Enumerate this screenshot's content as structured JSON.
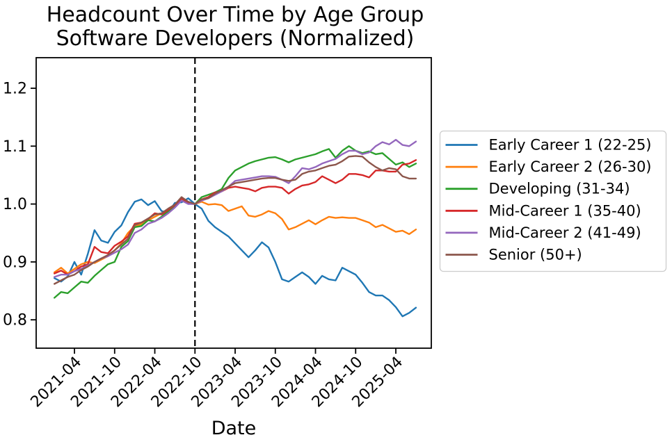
{
  "chart_data": {
    "type": "line",
    "title": "Headcount Over Time by Age Group\nSoftware Developers (Normalized)",
    "title_lines": [
      "Headcount Over Time by Age Group",
      "Software Developers (Normalized)"
    ],
    "xlabel": "Date",
    "ylabel": "",
    "grid": false,
    "legend_position": "right",
    "legend_border_color": "#cccccc",
    "ylim": [
      0.751,
      1.2528
    ],
    "xlim_index": [
      -2.72,
      56.3
    ],
    "y_ticks": [
      0.8,
      0.9,
      1.0,
      1.1,
      1.2
    ],
    "y_tick_labels": [
      "0.8",
      "0.9",
      "1.0",
      "1.1",
      "1.2"
    ],
    "x_tick_indices": [
      3,
      9,
      15,
      21,
      27,
      33,
      39,
      45,
      51
    ],
    "x_tick_labels": [
      "2021-04",
      "2021-10",
      "2022-04",
      "2022-10",
      "2023-04",
      "2023-10",
      "2024-04",
      "2024-10",
      "2025-04"
    ],
    "vline": {
      "date": "2022-10",
      "index": 21,
      "style": "dashed",
      "color": "#000000"
    },
    "normalization_note": "all series = 1.0 at 2022-10",
    "x": [
      "2021-01",
      "2021-02",
      "2021-03",
      "2021-04",
      "2021-05",
      "2021-06",
      "2021-07",
      "2021-08",
      "2021-09",
      "2021-10",
      "2021-11",
      "2021-12",
      "2022-01",
      "2022-02",
      "2022-03",
      "2022-04",
      "2022-05",
      "2022-06",
      "2022-07",
      "2022-08",
      "2022-09",
      "2022-10",
      "2022-11",
      "2022-12",
      "2023-01",
      "2023-02",
      "2023-03",
      "2023-04",
      "2023-05",
      "2023-06",
      "2023-07",
      "2023-08",
      "2023-09",
      "2023-10",
      "2023-11",
      "2023-12",
      "2024-01",
      "2024-02",
      "2024-03",
      "2024-04",
      "2024-05",
      "2024-06",
      "2024-07",
      "2024-08",
      "2024-09",
      "2024-10",
      "2024-11",
      "2024-12",
      "2025-01",
      "2025-02",
      "2025-03",
      "2025-04",
      "2025-05",
      "2025-06",
      "2025-07"
    ],
    "series": [
      {
        "name": "Early Career 1 (22-25)",
        "color": "#1f77b4",
        "values": [
          0.872,
          0.866,
          0.875,
          0.9,
          0.878,
          0.914,
          0.955,
          0.937,
          0.933,
          0.952,
          0.963,
          0.986,
          1.004,
          1.008,
          0.998,
          1.005,
          0.988,
          0.985,
          1.002,
          1.003,
          1.01,
          1.0,
          0.992,
          0.971,
          0.96,
          0.952,
          0.944,
          0.932,
          0.92,
          0.908,
          0.92,
          0.934,
          0.925,
          0.9,
          0.87,
          0.866,
          0.874,
          0.882,
          0.874,
          0.862,
          0.876,
          0.87,
          0.868,
          0.89,
          0.884,
          0.878,
          0.864,
          0.848,
          0.842,
          0.842,
          0.834,
          0.822,
          0.806,
          0.812,
          0.821
        ]
      },
      {
        "name": "Early Career 2 (26-30)",
        "color": "#ff7f0e",
        "values": [
          0.882,
          0.89,
          0.88,
          0.888,
          0.896,
          0.9,
          0.898,
          0.904,
          0.91,
          0.92,
          0.932,
          0.95,
          0.962,
          0.965,
          0.972,
          0.978,
          0.984,
          0.988,
          0.996,
          1.008,
          1.002,
          1.0,
          1.004,
          0.999,
          1.0,
          0.998,
          0.988,
          0.992,
          0.996,
          0.98,
          0.978,
          0.982,
          0.988,
          0.984,
          0.974,
          0.956,
          0.96,
          0.966,
          0.972,
          0.965,
          0.972,
          0.978,
          0.976,
          0.977,
          0.976,
          0.976,
          0.972,
          0.968,
          0.96,
          0.964,
          0.958,
          0.952,
          0.954,
          0.948,
          0.956
        ]
      },
      {
        "name": "Developing (31-34)",
        "color": "#2ca02c",
        "values": [
          0.838,
          0.848,
          0.846,
          0.856,
          0.866,
          0.864,
          0.876,
          0.886,
          0.896,
          0.9,
          0.926,
          0.936,
          0.96,
          0.962,
          0.972,
          0.97,
          0.978,
          0.988,
          0.996,
          1.01,
          1.002,
          1.0,
          1.012,
          1.016,
          1.02,
          1.026,
          1.045,
          1.058,
          1.064,
          1.07,
          1.074,
          1.077,
          1.08,
          1.081,
          1.077,
          1.072,
          1.077,
          1.08,
          1.083,
          1.086,
          1.091,
          1.095,
          1.08,
          1.092,
          1.1,
          1.092,
          1.088,
          1.091,
          1.086,
          1.088,
          1.078,
          1.068,
          1.072,
          1.064,
          1.07
        ]
      },
      {
        "name": "Mid-Career 1 (35-40)",
        "color": "#d62728",
        "values": [
          0.88,
          0.885,
          0.878,
          0.884,
          0.892,
          0.896,
          0.926,
          0.917,
          0.915,
          0.928,
          0.935,
          0.944,
          0.966,
          0.968,
          0.974,
          0.984,
          0.982,
          0.99,
          0.998,
          1.01,
          1.003,
          1.0,
          1.008,
          1.012,
          1.02,
          1.022,
          1.028,
          1.03,
          1.028,
          1.026,
          1.022,
          1.028,
          1.03,
          1.03,
          1.028,
          1.018,
          1.026,
          1.032,
          1.034,
          1.038,
          1.048,
          1.042,
          1.036,
          1.042,
          1.052,
          1.052,
          1.05,
          1.046,
          1.058,
          1.058,
          1.056,
          1.056,
          1.068,
          1.07,
          1.076
        ]
      },
      {
        "name": "Mid-Career 2 (41-49)",
        "color": "#9467bd",
        "values": [
          0.874,
          0.878,
          0.878,
          0.884,
          0.888,
          0.894,
          0.9,
          0.906,
          0.91,
          0.916,
          0.922,
          0.93,
          0.95,
          0.956,
          0.966,
          0.97,
          0.976,
          0.984,
          0.994,
          1.006,
          1.0,
          1.0,
          1.006,
          1.01,
          1.016,
          1.022,
          1.03,
          1.04,
          1.042,
          1.044,
          1.046,
          1.048,
          1.048,
          1.047,
          1.042,
          1.036,
          1.048,
          1.062,
          1.06,
          1.064,
          1.07,
          1.074,
          1.078,
          1.086,
          1.092,
          1.092,
          1.086,
          1.089,
          1.1,
          1.107,
          1.103,
          1.111,
          1.102,
          1.1,
          1.108
        ]
      },
      {
        "name": "Senior (50+)",
        "color": "#8c564b",
        "values": [
          0.862,
          0.868,
          0.874,
          0.878,
          0.886,
          0.892,
          0.9,
          0.906,
          0.912,
          0.92,
          0.93,
          0.94,
          0.964,
          0.968,
          0.975,
          0.982,
          0.984,
          0.992,
          0.999,
          1.012,
          1.004,
          1.0,
          1.008,
          1.01,
          1.018,
          1.024,
          1.03,
          1.036,
          1.038,
          1.04,
          1.042,
          1.044,
          1.045,
          1.045,
          1.042,
          1.04,
          1.042,
          1.052,
          1.056,
          1.058,
          1.062,
          1.066,
          1.068,
          1.074,
          1.082,
          1.083,
          1.082,
          1.072,
          1.064,
          1.058,
          1.062,
          1.06,
          1.048,
          1.044,
          1.044
        ]
      }
    ]
  }
}
